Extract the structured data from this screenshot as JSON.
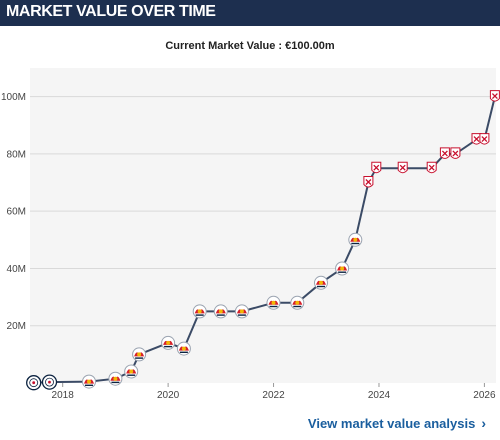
{
  "header": {
    "title": "MARKET VALUE OVER TIME"
  },
  "current_value": {
    "label": "Current Market Value : €100.00m"
  },
  "footer": {
    "link_label": "View market value analysis",
    "chevron": "›"
  },
  "colors": {
    "header_bg": "#1d2f4f",
    "line": "#3b4b66",
    "plot_bg": "#f5f5f5",
    "grid": "#d9d9d9",
    "club_badge_red": "#d6202a",
    "club_badge_gold": "#f2b705",
    "club_badge_navy": "#0c2340",
    "club2_red": "#c8102e",
    "link": "#1a5e9e"
  },
  "chart_data": {
    "type": "line",
    "title": "",
    "xlabel": "",
    "ylabel": "",
    "xlim": [
      2017.38,
      2026.22
    ],
    "ylim": [
      0,
      110
    ],
    "y_ticks": [
      20,
      40,
      60,
      80,
      100
    ],
    "y_tick_labels": [
      "20M",
      "40M",
      "60M",
      "80M",
      "100M"
    ],
    "x_ticks": [
      2018,
      2020,
      2022,
      2024,
      2026
    ],
    "x_tick_labels": [
      "2018",
      "2020",
      "2022",
      "2024",
      "2026"
    ],
    "grid": true,
    "series": [
      {
        "x": [
          2017.45,
          2017.75,
          2018.5,
          2019.0,
          2019.3,
          2019.45,
          2020.0,
          2020.3,
          2020.6,
          2021.0,
          2021.4,
          2022.0,
          2022.45,
          2022.9,
          2023.3,
          2023.55,
          2023.8,
          2023.95,
          2024.45,
          2025.0,
          2025.25,
          2025.45,
          2025.85,
          2026.0,
          2026.2
        ],
        "y": [
          0.1,
          0.3,
          0.5,
          1.5,
          4,
          10,
          14,
          12,
          25,
          25,
          25,
          28,
          28,
          35,
          40,
          50,
          70,
          75,
          75,
          75,
          80,
          80,
          85,
          85,
          100
        ],
        "badges": [
          "club1",
          "club1",
          "club2",
          "club2",
          "club2",
          "club2",
          "club2",
          "club2",
          "club2",
          "club2",
          "club2",
          "club2",
          "club2",
          "club2",
          "club2",
          "club2",
          "club3",
          "club3",
          "club3",
          "club3",
          "club3",
          "club3",
          "club3",
          "club3",
          "club3"
        ]
      }
    ]
  }
}
